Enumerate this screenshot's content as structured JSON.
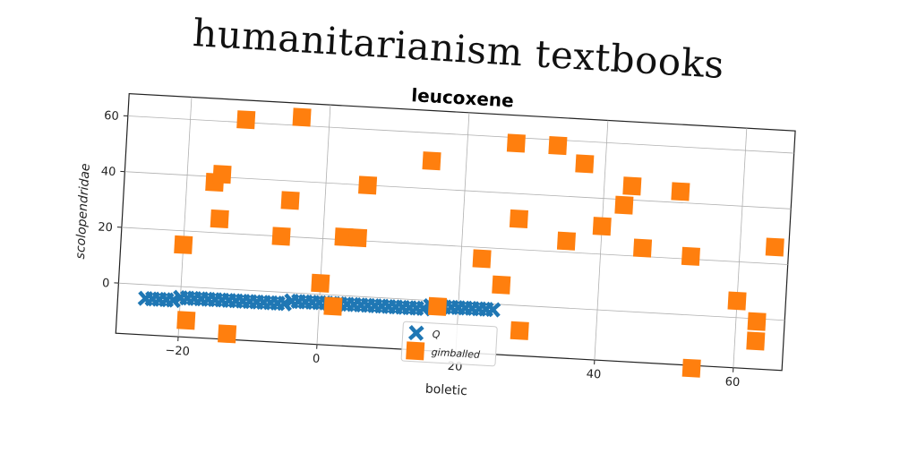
{
  "page": {
    "heading": "humanitarianism textbooks"
  },
  "chart_data": {
    "type": "scatter",
    "title": "leucoxene",
    "xlabel": "boletic",
    "ylabel": "scolopendridae",
    "xlim": [
      -29,
      67
    ],
    "ylim": [
      -18,
      68
    ],
    "xticks": [
      -20,
      0,
      20,
      40,
      60
    ],
    "yticks": [
      0,
      20,
      40,
      60
    ],
    "xtick_labels": [
      "−20",
      "0",
      "20",
      "40",
      "60"
    ],
    "ytick_labels": [
      "0",
      "20",
      "40",
      "60"
    ],
    "grid": true,
    "legend": {
      "placement": "lower-center"
    },
    "series": [
      {
        "name": "Q",
        "marker": "x",
        "color": "#1f77b4",
        "x": [
          -25,
          -24,
          -23,
          -22,
          -21,
          -20,
          -19,
          -18,
          -17,
          -16,
          -15,
          -14,
          -13,
          -12,
          -11,
          -10,
          -9,
          -8,
          -7,
          -6,
          -5,
          -4,
          -3,
          -2,
          -1,
          0,
          1,
          2,
          3,
          4,
          5,
          6,
          7,
          8,
          9,
          10,
          11,
          12,
          13,
          14,
          15,
          16,
          17,
          18,
          19,
          20,
          21,
          22,
          23,
          24,
          25
        ],
        "y": [
          -5,
          -5,
          -5,
          -5,
          -5,
          -4,
          -4,
          -4,
          -4,
          -4,
          -4,
          -4,
          -4,
          -4,
          -4,
          -4,
          -4,
          -4,
          -4,
          -4,
          -4,
          -3,
          -3,
          -3,
          -3,
          -3,
          -3,
          -3,
          -3,
          -3,
          -3,
          -3,
          -3,
          -3,
          -3,
          -3,
          -3,
          -3,
          -3,
          -3,
          -3,
          -2,
          -2,
          -2,
          -2,
          -2,
          -2,
          -2,
          -2,
          -2,
          -2
        ]
      },
      {
        "name": "gimballed",
        "marker": "s",
        "color": "#ff7f0e",
        "x": [
          -12,
          -4,
          15,
          27,
          33,
          37,
          -16,
          -15,
          6,
          44,
          43,
          51,
          -5,
          28,
          40,
          -15,
          35,
          46,
          53,
          65,
          -6,
          3,
          5,
          -20,
          23,
          26,
          60,
          63,
          0,
          2,
          17,
          63,
          -19,
          29,
          -13,
          54
        ],
        "y": [
          61,
          63,
          50,
          58,
          58,
          52,
          38,
          41,
          40,
          45,
          38,
          44,
          33,
          31,
          30,
          25,
          24,
          23,
          21,
          26,
          20,
          21,
          21,
          15,
          16,
          7,
          6,
          -1,
          4,
          -4,
          -2,
          -8,
          -12,
          -9,
          -16,
          -19
        ]
      }
    ]
  }
}
